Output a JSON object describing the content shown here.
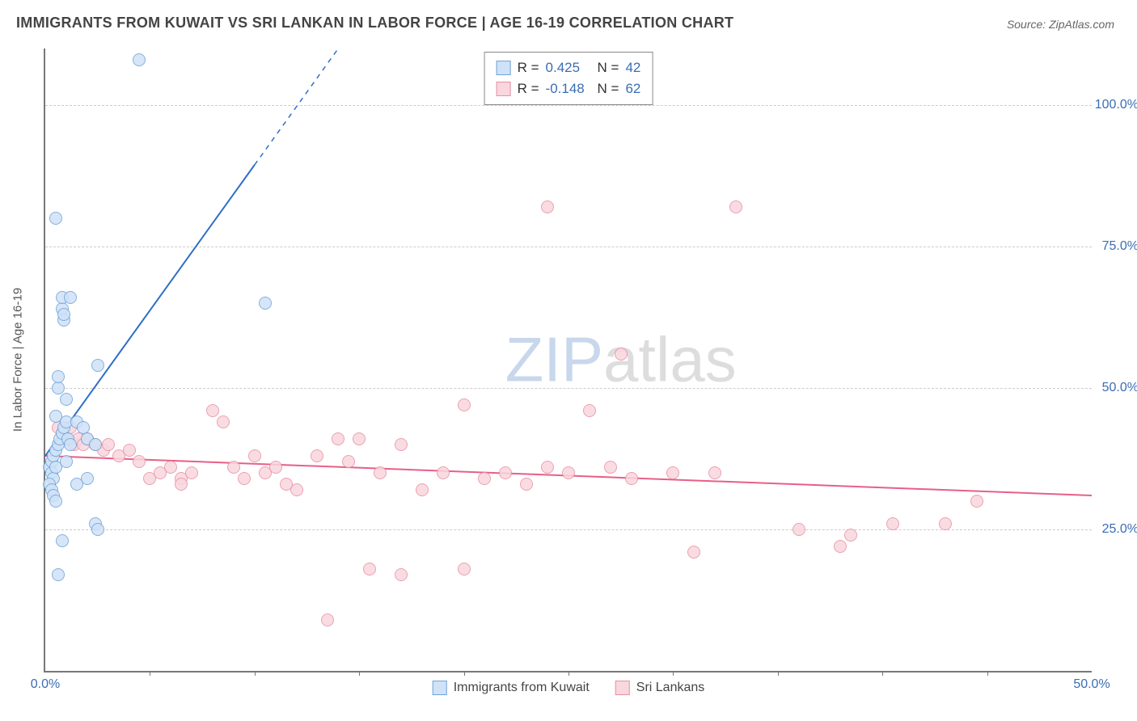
{
  "title": "IMMIGRANTS FROM KUWAIT VS SRI LANKAN IN LABOR FORCE | AGE 16-19 CORRELATION CHART",
  "source_label": "Source: ",
  "source_name": "ZipAtlas.com",
  "watermark_a": "ZIP",
  "watermark_b": "atlas",
  "chart": {
    "type": "scatter",
    "y_axis_label": "In Labor Force | Age 16-19",
    "xlim": [
      0,
      50
    ],
    "ylim": [
      0,
      110
    ],
    "y_ticks": [
      {
        "v": 25,
        "label": "25.0%"
      },
      {
        "v": 50,
        "label": "50.0%"
      },
      {
        "v": 75,
        "label": "75.0%"
      },
      {
        "v": 100,
        "label": "100.0%"
      }
    ],
    "x_ticks": [
      {
        "v": 0,
        "label": "0.0%"
      },
      {
        "v": 50,
        "label": "50.0%"
      }
    ],
    "x_minor_step": 5,
    "grid_color": "#cccccc",
    "background_color": "#ffffff",
    "marker_radius": 8,
    "marker_border_width": 1.5,
    "line_width": 2,
    "series": {
      "kuwait": {
        "name": "Immigrants from Kuwait",
        "fill": "#cfe2f7",
        "stroke": "#6fa3d9",
        "line_color": "#2e6fc7",
        "R_label": "R = ",
        "R": "0.425",
        "N_label": "N = ",
        "N": "42",
        "regression": {
          "x1": 0,
          "y1": 38,
          "x2": 14,
          "y2": 110,
          "dashed_from_x": 10
        },
        "points": [
          [
            0.2,
            36
          ],
          [
            0.3,
            37
          ],
          [
            0.4,
            38
          ],
          [
            0.5,
            39
          ],
          [
            0.6,
            40
          ],
          [
            0.7,
            41
          ],
          [
            0.3,
            35
          ],
          [
            0.4,
            34
          ],
          [
            0.8,
            42
          ],
          [
            0.9,
            43
          ],
          [
            1.0,
            44
          ],
          [
            1.1,
            41
          ],
          [
            1.2,
            40
          ],
          [
            0.2,
            33
          ],
          [
            0.3,
            32
          ],
          [
            0.5,
            36
          ],
          [
            1.0,
            48
          ],
          [
            0.6,
            50
          ],
          [
            0.6,
            52
          ],
          [
            0.8,
            64
          ],
          [
            0.8,
            66
          ],
          [
            0.9,
            62
          ],
          [
            0.9,
            63
          ],
          [
            1.2,
            66
          ],
          [
            2.5,
            54
          ],
          [
            0.5,
            80
          ],
          [
            4.5,
            108
          ],
          [
            1.5,
            44
          ],
          [
            1.8,
            43
          ],
          [
            2.0,
            41
          ],
          [
            2.4,
            40
          ],
          [
            0.4,
            31
          ],
          [
            0.5,
            30
          ],
          [
            1.5,
            33
          ],
          [
            2.0,
            34
          ],
          [
            0.6,
            17
          ],
          [
            2.4,
            26
          ],
          [
            2.5,
            25
          ],
          [
            0.8,
            23
          ],
          [
            10.5,
            65
          ],
          [
            0.5,
            45
          ],
          [
            1.0,
            37
          ]
        ]
      },
      "srilanka": {
        "name": "Sri Lankans",
        "fill": "#f9d7de",
        "stroke": "#e890a5",
        "line_color": "#e75f87",
        "R_label": "R = ",
        "R": "-0.148",
        "N_label": "N = ",
        "N": "62",
        "regression": {
          "x1": 0,
          "y1": 38,
          "x2": 50,
          "y2": 31,
          "dashed_from_x": 999
        },
        "points": [
          [
            0.6,
            43
          ],
          [
            0.8,
            42
          ],
          [
            1.0,
            41
          ],
          [
            1.2,
            43
          ],
          [
            1.4,
            40
          ],
          [
            1.6,
            41
          ],
          [
            1.8,
            40
          ],
          [
            2.0,
            41
          ],
          [
            2.4,
            40
          ],
          [
            2.8,
            39
          ],
          [
            3.0,
            40
          ],
          [
            3.5,
            38
          ],
          [
            4.0,
            39
          ],
          [
            4.5,
            37
          ],
          [
            5.0,
            34
          ],
          [
            5.5,
            35
          ],
          [
            6.0,
            36
          ],
          [
            6.5,
            34
          ],
          [
            7.0,
            35
          ],
          [
            8.0,
            46
          ],
          [
            8.5,
            44
          ],
          [
            9.0,
            36
          ],
          [
            9.5,
            34
          ],
          [
            10.0,
            38
          ],
          [
            10.5,
            35
          ],
          [
            11.0,
            36
          ],
          [
            12.0,
            32
          ],
          [
            13.0,
            38
          ],
          [
            14.0,
            41
          ],
          [
            14.5,
            37
          ],
          [
            15.0,
            41
          ],
          [
            16.0,
            35
          ],
          [
            17.0,
            40
          ],
          [
            18.0,
            32
          ],
          [
            19.0,
            35
          ],
          [
            20.0,
            47
          ],
          [
            21.0,
            34
          ],
          [
            22.0,
            35
          ],
          [
            23.0,
            33
          ],
          [
            24.0,
            36
          ],
          [
            25.0,
            35
          ],
          [
            26.0,
            46
          ],
          [
            27.0,
            36
          ],
          [
            28.0,
            34
          ],
          [
            30.0,
            35
          ],
          [
            32.0,
            35
          ],
          [
            24.0,
            82
          ],
          [
            33.0,
            82
          ],
          [
            27.5,
            56
          ],
          [
            13.5,
            9
          ],
          [
            15.5,
            18
          ],
          [
            17.0,
            17
          ],
          [
            20.0,
            18
          ],
          [
            31.0,
            21
          ],
          [
            36.0,
            25
          ],
          [
            38.0,
            22
          ],
          [
            38.5,
            24
          ],
          [
            40.5,
            26
          ],
          [
            43.0,
            26
          ],
          [
            44.5,
            30
          ],
          [
            6.5,
            33
          ],
          [
            11.5,
            33
          ]
        ]
      }
    }
  }
}
